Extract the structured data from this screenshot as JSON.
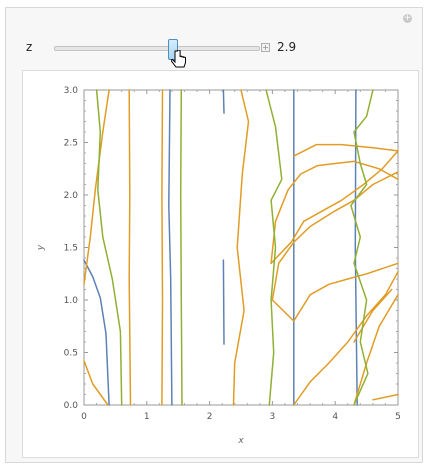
{
  "controls": {
    "param_label": "z",
    "param_value": "2.9",
    "slider_fraction": 0.58
  },
  "icons": {
    "expand": "plus-circle-icon",
    "animate": "plus-square-icon",
    "cursor": "hand-pointer-icon"
  },
  "chart_data": {
    "type": "line",
    "xlabel": "x",
    "ylabel": "y",
    "xlim": [
      0,
      5
    ],
    "ylim": [
      0,
      3
    ],
    "x_ticks": [
      "0",
      "1",
      "2",
      "3",
      "4",
      "5"
    ],
    "y_ticks": [
      "0.0",
      "0.5",
      "1.0",
      "1.5",
      "2.0",
      "2.5",
      "3.0"
    ],
    "frame": true,
    "series": [
      {
        "color": "#5e81b5",
        "values": [
          [
            0.0,
            1.38
          ],
          [
            0.14,
            1.22
          ],
          [
            0.26,
            1.02
          ],
          [
            0.35,
            0.68
          ],
          [
            0.4,
            0.0
          ]
        ]
      },
      {
        "color": "#5e81b5",
        "values": [
          [
            1.37,
            3.0
          ],
          [
            1.35,
            1.9
          ],
          [
            1.38,
            1.2
          ],
          [
            1.4,
            0.0
          ]
        ]
      },
      {
        "color": "#5e81b5",
        "values": [
          [
            2.22,
            3.0
          ],
          [
            2.23,
            2.78
          ]
        ]
      },
      {
        "color": "#5e81b5",
        "values": [
          [
            2.22,
            1.38
          ],
          [
            2.23,
            0.58
          ]
        ]
      },
      {
        "color": "#5e81b5",
        "values": [
          [
            3.34,
            3.0
          ],
          [
            3.34,
            0.0
          ]
        ]
      },
      {
        "color": "#5e81b5",
        "values": [
          [
            4.33,
            3.0
          ],
          [
            4.32,
            1.5
          ],
          [
            4.35,
            0.0
          ]
        ]
      },
      {
        "color": "#e19c24",
        "values": [
          [
            0.0,
            1.15
          ],
          [
            0.1,
            1.6
          ],
          [
            0.18,
            2.05
          ],
          [
            0.3,
            2.6
          ],
          [
            0.4,
            3.0
          ]
        ]
      },
      {
        "color": "#e19c24",
        "values": [
          [
            0.0,
            0.42
          ],
          [
            0.14,
            0.2
          ],
          [
            0.38,
            0.0
          ]
        ]
      },
      {
        "color": "#e19c24",
        "values": [
          [
            0.72,
            3.0
          ],
          [
            0.73,
            2.0
          ],
          [
            0.72,
            1.2
          ],
          [
            0.74,
            0.0
          ]
        ]
      },
      {
        "color": "#e19c24",
        "values": [
          [
            1.25,
            3.0
          ],
          [
            1.24,
            2.0
          ],
          [
            1.25,
            1.0
          ],
          [
            1.24,
            0.0
          ]
        ]
      },
      {
        "color": "#e19c24",
        "values": [
          [
            2.5,
            3.0
          ],
          [
            2.62,
            2.7
          ],
          [
            2.52,
            2.2
          ],
          [
            2.44,
            1.5
          ],
          [
            2.55,
            0.9
          ],
          [
            2.4,
            0.4
          ],
          [
            2.38,
            0.0
          ]
        ]
      },
      {
        "color": "#e19c24",
        "values": [
          [
            3.34,
            2.37
          ],
          [
            3.7,
            2.48
          ],
          [
            4.1,
            2.48
          ],
          [
            4.6,
            2.45
          ],
          [
            5.0,
            2.42
          ]
        ]
      },
      {
        "color": "#e19c24",
        "values": [
          [
            2.98,
            1.35
          ],
          [
            3.05,
            1.75
          ],
          [
            3.25,
            2.05
          ],
          [
            3.45,
            2.2
          ],
          [
            3.72,
            2.28
          ],
          [
            4.0,
            2.3
          ],
          [
            4.3,
            2.32
          ],
          [
            4.7,
            2.25
          ],
          [
            5.0,
            2.15
          ]
        ]
      },
      {
        "color": "#e19c24",
        "values": [
          [
            2.98,
            1.35
          ],
          [
            3.3,
            1.55
          ],
          [
            3.5,
            1.75
          ],
          [
            3.8,
            1.85
          ],
          [
            4.1,
            1.95
          ],
          [
            4.45,
            2.1
          ],
          [
            4.75,
            2.25
          ],
          [
            5.0,
            2.42
          ]
        ]
      },
      {
        "color": "#e19c24",
        "values": [
          [
            3.34,
            0.8
          ],
          [
            3.0,
            1.0
          ],
          [
            3.1,
            1.35
          ],
          [
            3.34,
            1.55
          ],
          [
            3.6,
            1.7
          ],
          [
            4.0,
            1.85
          ],
          [
            4.3,
            1.95
          ],
          [
            4.6,
            2.1
          ],
          [
            5.0,
            2.22
          ]
        ]
      },
      {
        "color": "#e19c24",
        "values": [
          [
            3.34,
            0.8
          ],
          [
            3.6,
            1.05
          ],
          [
            3.9,
            1.15
          ],
          [
            4.2,
            1.2
          ],
          [
            4.5,
            1.25
          ],
          [
            5.0,
            1.35
          ]
        ]
      },
      {
        "color": "#e19c24",
        "values": [
          [
            3.34,
            0.0
          ],
          [
            3.6,
            0.22
          ],
          [
            3.9,
            0.4
          ],
          [
            4.2,
            0.6
          ],
          [
            4.5,
            0.85
          ],
          [
            4.8,
            1.05
          ],
          [
            5.0,
            1.27
          ]
        ]
      },
      {
        "color": "#e19c24",
        "values": [
          [
            4.3,
            0.0
          ],
          [
            4.5,
            0.4
          ],
          [
            4.7,
            0.75
          ],
          [
            5.0,
            1.05
          ]
        ]
      },
      {
        "color": "#e19c24",
        "values": [
          [
            4.6,
            0.05
          ],
          [
            5.0,
            0.1
          ]
        ]
      },
      {
        "color": "#e19c24",
        "values": [
          [
            4.3,
            0.6
          ],
          [
            4.6,
            0.9
          ],
          [
            4.9,
            1.1
          ]
        ]
      },
      {
        "color": "#8fb032",
        "values": [
          [
            0.2,
            3.0
          ],
          [
            0.26,
            2.6
          ],
          [
            0.22,
            2.05
          ],
          [
            0.3,
            1.6
          ],
          [
            0.45,
            1.2
          ],
          [
            0.58,
            0.7
          ],
          [
            0.6,
            0.0
          ]
        ]
      },
      {
        "color": "#8fb032",
        "values": [
          [
            1.55,
            3.0
          ],
          [
            1.54,
            2.0
          ],
          [
            1.55,
            1.0
          ],
          [
            1.56,
            0.0
          ]
        ]
      },
      {
        "color": "#8fb032",
        "values": [
          [
            2.9,
            3.0
          ],
          [
            3.05,
            2.65
          ],
          [
            3.15,
            2.15
          ],
          [
            2.98,
            1.95
          ],
          [
            3.05,
            1.5
          ],
          [
            2.98,
            1.0
          ],
          [
            3.02,
            0.5
          ],
          [
            2.95,
            0.0
          ]
        ]
      },
      {
        "color": "#8fb032",
        "values": [
          [
            4.6,
            3.0
          ],
          [
            4.5,
            2.75
          ],
          [
            4.3,
            2.6
          ],
          [
            4.4,
            2.3
          ],
          [
            4.5,
            2.1
          ],
          [
            4.25,
            1.9
          ],
          [
            4.4,
            1.6
          ],
          [
            4.3,
            1.35
          ],
          [
            4.5,
            1.0
          ],
          [
            4.4,
            0.6
          ],
          [
            4.52,
            0.3
          ],
          [
            4.3,
            0.0
          ]
        ]
      }
    ]
  }
}
